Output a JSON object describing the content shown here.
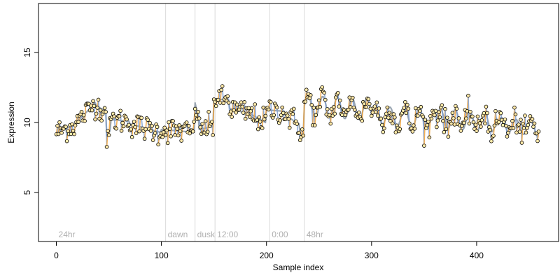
{
  "chart_data": {
    "type": "scatter",
    "title": "",
    "xlabel": "Sample index",
    "ylabel": "Expression",
    "xlim": [
      -17,
      478
    ],
    "ylim": [
      1.5,
      18.5
    ],
    "xticks": [
      0,
      100,
      200,
      300,
      400
    ],
    "yticks": [
      5,
      10,
      15
    ],
    "grid": false,
    "legend": "none",
    "colors": {
      "point_fill": "#ffe9a8",
      "point_stroke": "#000000",
      "trend_line": "#9aa6b2",
      "up_segment": "#f2a33a",
      "down_segment": "#7f9fd0",
      "annotation_line": "#d9d9d9",
      "annotation_text": "#b0b0b0"
    },
    "annotations": [
      {
        "x": 0,
        "label": "24hr"
      },
      {
        "x": 104,
        "label": "dawn"
      },
      {
        "x": 132,
        "label": "dusk"
      },
      {
        "x": 151,
        "label": "12:00"
      },
      {
        "x": 203,
        "label": "0:00"
      },
      {
        "x": 236,
        "label": "48hr"
      }
    ],
    "segments": [
      {
        "x0": 0,
        "x1": 18,
        "y0": 9.3,
        "y1": 9.8
      },
      {
        "x0": 18,
        "x1": 38,
        "y0": 9.9,
        "y1": 11.4
      },
      {
        "x0": 38,
        "x1": 48,
        "y0": 11.2,
        "y1": 10.8
      },
      {
        "x0": 48,
        "x1": 52,
        "y0": 9.0,
        "y1": 9.4
      },
      {
        "x0": 52,
        "x1": 70,
        "y0": 10.2,
        "y1": 10.1
      },
      {
        "x0": 70,
        "x1": 100,
        "y0": 9.9,
        "y1": 9.3
      },
      {
        "x0": 100,
        "x1": 132,
        "y0": 9.5,
        "y1": 9.3
      },
      {
        "x0": 132,
        "x1": 136,
        "y0": 11.4,
        "y1": 10.4
      },
      {
        "x0": 136,
        "x1": 150,
        "y0": 9.5,
        "y1": 9.7
      },
      {
        "x0": 150,
        "x1": 165,
        "y0": 11.7,
        "y1": 11.6
      },
      {
        "x0": 165,
        "x1": 185,
        "y0": 11.0,
        "y1": 10.6
      },
      {
        "x0": 185,
        "x1": 200,
        "y0": 10.6,
        "y1": 10.0
      },
      {
        "x0": 200,
        "x1": 218,
        "y0": 10.9,
        "y1": 10.8
      },
      {
        "x0": 218,
        "x1": 232,
        "y0": 10.5,
        "y1": 9.9
      },
      {
        "x0": 232,
        "x1": 236,
        "y0": 9.1,
        "y1": 9.2
      },
      {
        "x0": 236,
        "x1": 300,
        "y0": 11.2,
        "y1": 10.9,
        "amp": 0.75,
        "period": 14
      },
      {
        "x0": 300,
        "x1": 362,
        "y0": 10.6,
        "y1": 10.1,
        "amp": 0.65,
        "period": 14
      },
      {
        "x0": 362,
        "x1": 420,
        "y0": 10.3,
        "y1": 10.0,
        "amp": 0.7,
        "period": 14
      },
      {
        "x0": 420,
        "x1": 460,
        "y0": 9.9,
        "y1": 9.5,
        "amp": 0.5,
        "period": 14
      }
    ],
    "noise_sd": 0.45
  }
}
